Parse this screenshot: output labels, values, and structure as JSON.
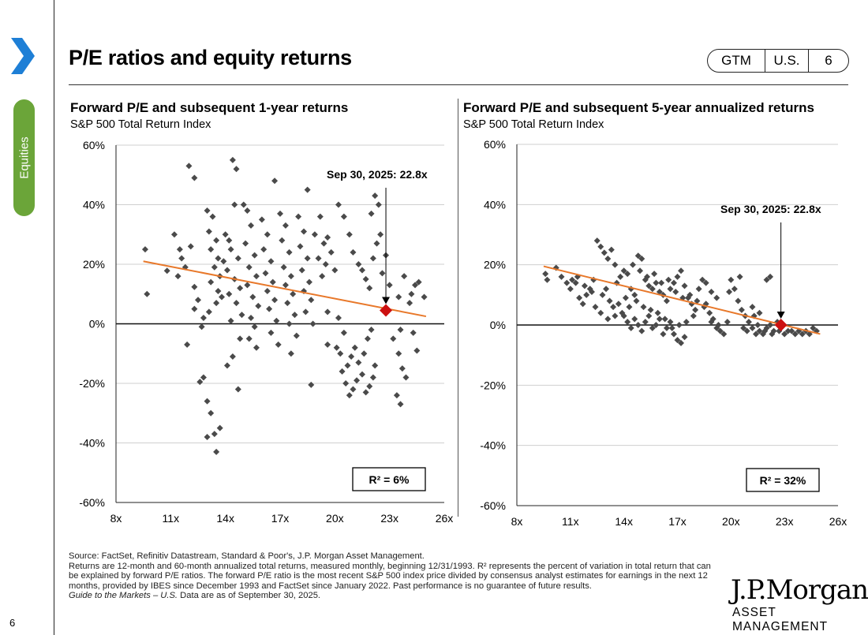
{
  "page": {
    "section_tab": "Equities",
    "title": "P/E ratios and equity returns",
    "badge": [
      "GTM",
      "U.S.",
      "6"
    ],
    "page_number": "6",
    "colors": {
      "accent_blue": "#1e7fd6",
      "section_green": "#6ba539",
      "point": "#4a4a4a",
      "trend": "#e8782a",
      "current": "#cc1111"
    }
  },
  "chart_data": [
    {
      "type": "scatter",
      "title": "Forward P/E and subsequent 1-year returns",
      "subtitle": "S&P 500 Total Return Index",
      "x_tick_labels": [
        "8x",
        "11x",
        "14x",
        "17x",
        "20x",
        "23x",
        "26x"
      ],
      "y_tick_labels": [
        "60%",
        "40%",
        "20%",
        "0%",
        "-20%",
        "-40%",
        "-60%"
      ],
      "xlim": [
        8,
        26
      ],
      "ylim": [
        -60,
        60
      ],
      "grid": true,
      "annotation": "Sep 30, 2025:  22.8x",
      "current_point": {
        "x": 22.8,
        "y": 4.5
      },
      "trendline": {
        "x": [
          9.5,
          25.0
        ],
        "y": [
          21,
          2.5
        ]
      },
      "r_squared": "R²  = 6%",
      "points": [
        [
          9.6,
          25
        ],
        [
          9.7,
          10
        ],
        [
          10.8,
          17.8
        ],
        [
          11.2,
          30
        ],
        [
          11.5,
          25
        ],
        [
          11.6,
          22
        ],
        [
          11.4,
          16
        ],
        [
          11.8,
          19
        ],
        [
          12.1,
          26
        ],
        [
          12.3,
          5
        ],
        [
          12.5,
          8
        ],
        [
          12.3,
          12.4
        ],
        [
          12,
          53
        ],
        [
          12.3,
          49
        ],
        [
          11.9,
          -7
        ],
        [
          12.6,
          -19.5
        ],
        [
          12.8,
          -18
        ],
        [
          13,
          38
        ],
        [
          13.3,
          36
        ],
        [
          13.1,
          31
        ],
        [
          13.5,
          28
        ],
        [
          13.2,
          25
        ],
        [
          13.6,
          22
        ],
        [
          13.4,
          19
        ],
        [
          13.7,
          16
        ],
        [
          13.2,
          14
        ],
        [
          13.6,
          11
        ],
        [
          13.8,
          9
        ],
        [
          13.5,
          7
        ],
        [
          13.1,
          4
        ],
        [
          12.8,
          2
        ],
        [
          12.7,
          -1
        ],
        [
          13,
          -26
        ],
        [
          13.2,
          -30
        ],
        [
          13,
          -38
        ],
        [
          13.4,
          -37
        ],
        [
          13.7,
          -35
        ],
        [
          13.5,
          -43
        ],
        [
          13.9,
          21
        ],
        [
          14,
          30
        ],
        [
          14.2,
          28
        ],
        [
          14.4,
          55
        ],
        [
          14.6,
          52
        ],
        [
          14.5,
          40
        ],
        [
          14.3,
          25
        ],
        [
          14.7,
          22
        ],
        [
          14.1,
          18
        ],
        [
          14.5,
          15
        ],
        [
          14.8,
          12
        ],
        [
          14.2,
          10
        ],
        [
          14.6,
          7
        ],
        [
          14.9,
          3
        ],
        [
          14.3,
          1
        ],
        [
          14.8,
          -5
        ],
        [
          14.4,
          -11
        ],
        [
          14.1,
          -14
        ],
        [
          14.7,
          -22
        ],
        [
          15,
          40
        ],
        [
          15.2,
          38
        ],
        [
          15.4,
          33
        ],
        [
          15.1,
          27
        ],
        [
          15.6,
          23
        ],
        [
          15.3,
          19
        ],
        [
          15.7,
          16
        ],
        [
          15.2,
          13
        ],
        [
          15.5,
          9
        ],
        [
          15.8,
          6
        ],
        [
          15.4,
          2
        ],
        [
          15.6,
          -1
        ],
        [
          15.3,
          -5
        ],
        [
          15.7,
          -8
        ],
        [
          16,
          35
        ],
        [
          16.3,
          30
        ],
        [
          16.1,
          25
        ],
        [
          16.5,
          21
        ],
        [
          16.2,
          17
        ],
        [
          16.6,
          14
        ],
        [
          16.3,
          11
        ],
        [
          16.7,
          8
        ],
        [
          16.4,
          5
        ],
        [
          16.8,
          1
        ],
        [
          16.5,
          -3
        ],
        [
          16.9,
          -7
        ],
        [
          16.7,
          48
        ],
        [
          17,
          37
        ],
        [
          17.3,
          33
        ],
        [
          17.1,
          28
        ],
        [
          17.5,
          24
        ],
        [
          17.2,
          19
        ],
        [
          17.6,
          16
        ],
        [
          17.3,
          13
        ],
        [
          17.7,
          10
        ],
        [
          17.4,
          7
        ],
        [
          17.8,
          3
        ],
        [
          17.5,
          0
        ],
        [
          17.9,
          -4
        ],
        [
          17.6,
          -10
        ],
        [
          18,
          36
        ],
        [
          18.3,
          31
        ],
        [
          18.1,
          26
        ],
        [
          18.5,
          22
        ],
        [
          18.2,
          18
        ],
        [
          18.6,
          14
        ],
        [
          18.3,
          11
        ],
        [
          18.7,
          8
        ],
        [
          18.4,
          4
        ],
        [
          18.8,
          0
        ],
        [
          18.5,
          45
        ],
        [
          18.9,
          30
        ],
        [
          19.2,
          36
        ],
        [
          19.4,
          27
        ],
        [
          19.1,
          22
        ],
        [
          19.5,
          20
        ],
        [
          19.3,
          16
        ],
        [
          19.6,
          29
        ],
        [
          19.8,
          24
        ],
        [
          20,
          18
        ],
        [
          19.6,
          -7
        ],
        [
          20.1,
          -8
        ],
        [
          20.3,
          -10
        ],
        [
          20.4,
          -16
        ],
        [
          20.6,
          -20
        ],
        [
          20.8,
          -24
        ],
        [
          21,
          -22
        ],
        [
          21.2,
          -19
        ],
        [
          20.7,
          -14
        ],
        [
          20.9,
          -11
        ],
        [
          21.1,
          -8
        ],
        [
          21.3,
          -13
        ],
        [
          21.5,
          -17
        ],
        [
          21.7,
          -23
        ],
        [
          21.9,
          -21
        ],
        [
          22.1,
          -18
        ],
        [
          21.6,
          -10
        ],
        [
          21.8,
          -5
        ],
        [
          22,
          -2
        ],
        [
          22.2,
          -14
        ],
        [
          20.2,
          40
        ],
        [
          20.5,
          36
        ],
        [
          20.8,
          30
        ],
        [
          21,
          24
        ],
        [
          21.3,
          20
        ],
        [
          21.5,
          18
        ],
        [
          21.7,
          15
        ],
        [
          21.9,
          12
        ],
        [
          22.1,
          22
        ],
        [
          22.3,
          27
        ],
        [
          22.5,
          30
        ],
        [
          22,
          37
        ],
        [
          22.2,
          43
        ],
        [
          22.4,
          40
        ],
        [
          22.6,
          17
        ],
        [
          22.8,
          23
        ],
        [
          23,
          13
        ],
        [
          23.2,
          -5
        ],
        [
          23.5,
          -10
        ],
        [
          23.7,
          -15
        ],
        [
          23.9,
          -18
        ],
        [
          23.6,
          -2
        ],
        [
          23.4,
          -24
        ],
        [
          23.6,
          -27
        ],
        [
          24.2,
          10
        ],
        [
          24.4,
          13
        ],
        [
          24.6,
          14
        ],
        [
          24.9,
          9
        ],
        [
          24.3,
          -3
        ],
        [
          24.5,
          -9
        ],
        [
          23.5,
          9
        ],
        [
          23.8,
          16
        ],
        [
          24.1,
          7
        ],
        [
          18.7,
          -20.5
        ],
        [
          19.6,
          4
        ],
        [
          20.2,
          2
        ],
        [
          20.5,
          -3
        ]
      ]
    },
    {
      "type": "scatter",
      "title": "Forward P/E and subsequent 5-year annualized returns",
      "subtitle": "S&P 500 Total Return Index",
      "x_tick_labels": [
        "8x",
        "11x",
        "14x",
        "17x",
        "20x",
        "23x",
        "26x"
      ],
      "y_tick_labels": [
        "60%",
        "40%",
        "20%",
        "0%",
        "-20%",
        "-40%",
        "-60%"
      ],
      "xlim": [
        8,
        26
      ],
      "ylim": [
        -60,
        60
      ],
      "grid": true,
      "annotation": "Sep 30, 2025:  22.8x",
      "current_point": {
        "x": 22.8,
        "y": 0
      },
      "trendline": {
        "x": [
          9.5,
          25.0
        ],
        "y": [
          19.5,
          -3
        ]
      },
      "r_squared": "R²  = 32%",
      "points": [
        [
          9.6,
          17
        ],
        [
          9.7,
          15
        ],
        [
          10.2,
          19
        ],
        [
          10.5,
          16
        ],
        [
          10.8,
          14
        ],
        [
          11,
          12
        ],
        [
          11.3,
          14
        ],
        [
          11.5,
          9
        ],
        [
          11.7,
          7
        ],
        [
          11.9,
          10
        ],
        [
          12.1,
          12
        ],
        [
          12.3,
          15
        ],
        [
          12.5,
          28
        ],
        [
          12.7,
          26
        ],
        [
          12.9,
          24
        ],
        [
          13.1,
          22
        ],
        [
          13.3,
          25
        ],
        [
          13.5,
          20
        ],
        [
          12.8,
          10
        ],
        [
          13,
          12
        ],
        [
          13.2,
          8
        ],
        [
          13.4,
          6
        ],
        [
          13.6,
          14
        ],
        [
          13.8,
          16
        ],
        [
          14,
          18
        ],
        [
          14.2,
          17
        ],
        [
          14.4,
          12
        ],
        [
          14.6,
          10
        ],
        [
          14.8,
          23
        ],
        [
          15,
          22
        ],
        [
          14,
          3
        ],
        [
          14.2,
          1
        ],
        [
          14.4,
          -1
        ],
        [
          14.6,
          2
        ],
        [
          14.8,
          0
        ],
        [
          15,
          -2
        ],
        [
          15.2,
          1
        ],
        [
          15.4,
          3
        ],
        [
          15.6,
          -1
        ],
        [
          15.8,
          0
        ],
        [
          16,
          2
        ],
        [
          16.2,
          -3
        ],
        [
          16.4,
          -1
        ],
        [
          16.6,
          1
        ],
        [
          16.8,
          -3
        ],
        [
          17,
          -5
        ],
        [
          17.2,
          -6
        ],
        [
          17.4,
          -4
        ],
        [
          15.2,
          15
        ],
        [
          15.4,
          13
        ],
        [
          15.6,
          12
        ],
        [
          15.8,
          14
        ],
        [
          16,
          11
        ],
        [
          16.2,
          10
        ],
        [
          16.4,
          8
        ],
        [
          16.6,
          12
        ],
        [
          16.8,
          14
        ],
        [
          17,
          16
        ],
        [
          17.2,
          18
        ],
        [
          17.4,
          13
        ],
        [
          17.6,
          9
        ],
        [
          17.8,
          7
        ],
        [
          18,
          5
        ],
        [
          18.2,
          12
        ],
        [
          18.4,
          15
        ],
        [
          18.6,
          7
        ],
        [
          18.8,
          4
        ],
        [
          19,
          2
        ],
        [
          19.2,
          -1
        ],
        [
          19.4,
          -2
        ],
        [
          19.6,
          -3
        ],
        [
          19.8,
          1
        ],
        [
          20,
          15
        ],
        [
          20.2,
          12
        ],
        [
          20.4,
          8
        ],
        [
          20.6,
          5
        ],
        [
          20.8,
          3
        ],
        [
          21,
          1
        ],
        [
          21.2,
          -1
        ],
        [
          21.4,
          -3
        ],
        [
          21.6,
          -2
        ],
        [
          21.8,
          -3
        ],
        [
          22,
          -1
        ],
        [
          22.2,
          0
        ],
        [
          22.4,
          -2
        ],
        [
          22.6,
          1
        ],
        [
          22.8,
          -1
        ],
        [
          23,
          -3
        ],
        [
          23.2,
          -2
        ],
        [
          23.4,
          -2
        ],
        [
          23.6,
          -3
        ],
        [
          23.8,
          -2
        ],
        [
          24,
          -3
        ],
        [
          24.2,
          -2
        ],
        [
          24.4,
          -3
        ],
        [
          24.6,
          -1
        ],
        [
          24.8,
          -2
        ],
        [
          21.2,
          6
        ],
        [
          21.6,
          4
        ],
        [
          22,
          15
        ],
        [
          22.2,
          16
        ],
        [
          21.3,
          3
        ],
        [
          20.5,
          16
        ],
        [
          19.9,
          11
        ],
        [
          19.2,
          9
        ],
        [
          18.9,
          11
        ],
        [
          18.6,
          14
        ],
        [
          17.9,
          3
        ],
        [
          17.5,
          1
        ],
        [
          17.1,
          0
        ],
        [
          16.7,
          -1
        ],
        [
          16.3,
          2
        ],
        [
          15.9,
          4
        ],
        [
          15.5,
          5
        ],
        [
          15.1,
          6
        ],
        [
          14.7,
          8
        ],
        [
          14.3,
          6
        ],
        [
          13.9,
          4
        ],
        [
          13.5,
          3
        ],
        [
          13.1,
          2
        ],
        [
          12.7,
          4
        ],
        [
          12.4,
          6
        ],
        [
          12.2,
          11
        ],
        [
          11.8,
          13
        ],
        [
          11.4,
          16
        ],
        [
          11.1,
          15
        ],
        [
          13.7,
          7
        ],
        [
          14.1,
          9
        ],
        [
          14.5,
          20
        ],
        [
          14.9,
          18
        ],
        [
          15.3,
          16
        ],
        [
          15.7,
          17
        ],
        [
          16.1,
          14
        ],
        [
          16.5,
          15
        ],
        [
          16.9,
          11
        ],
        [
          17.3,
          9
        ],
        [
          17.7,
          10
        ],
        [
          18.1,
          8
        ],
        [
          18.5,
          6
        ],
        [
          18.9,
          1
        ],
        [
          19.3,
          0
        ],
        [
          20.9,
          -2
        ],
        [
          20.7,
          -1
        ],
        [
          21.5,
          0
        ],
        [
          21.9,
          -2
        ],
        [
          22.3,
          -3
        ],
        [
          22.7,
          -2
        ]
      ]
    }
  ],
  "footnote": {
    "source": "Source: FactSet, Refinitiv Datastream, Standard & Poor's, J.P. Morgan Asset Management.",
    "body": "Returns are 12-month and 60-month annualized total returns, measured monthly, beginning 12/31/1993. R² represents the percent of variation in total return that can be explained by forward P/E ratios. The forward P/E ratio is the most recent S&P 500 index price divided by consensus analyst estimates for earnings in the next 12 months, provided by IBES since December 1993 and FactSet since January 2022. Past performance is no guarantee of future results.",
    "gtm": "Guide to the Markets – U.S.",
    "asof": " Data are as of September 30, 2025."
  },
  "logo": {
    "name": "J.P.Morgan",
    "sub": "ASSET MANAGEMENT"
  }
}
